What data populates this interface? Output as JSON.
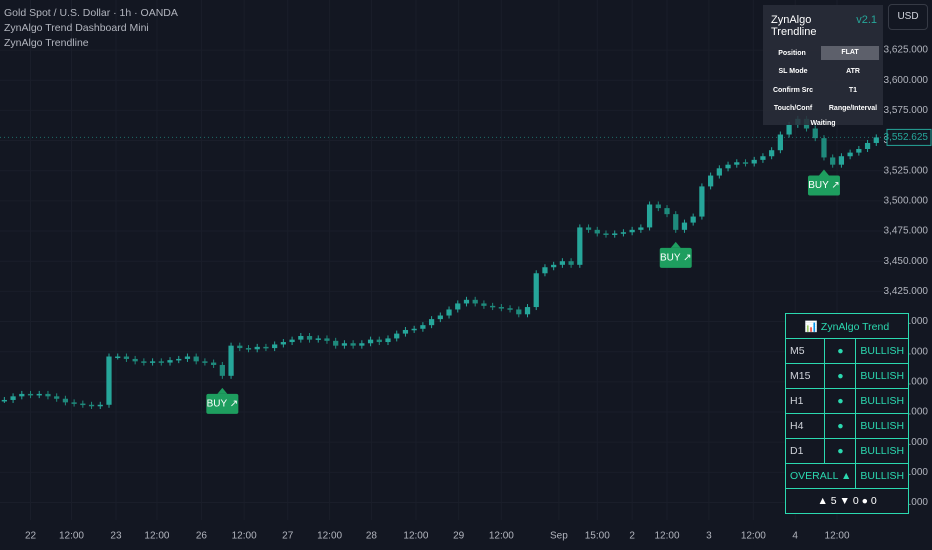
{
  "chart_data": {
    "type": "candlestick",
    "title": "Gold Spot / U.S. Dollar · 1h · OANDA",
    "indicators": [
      "ZynAlgo Trend Dashboard Mini",
      "ZynAlgo Trendline"
    ],
    "currency": "USD",
    "series": [
      {
        "name": "XAUUSD",
        "color": "#26a69a",
        "down_color": "#1f8a7c",
        "values": [
          3335,
          3338,
          3340,
          3339,
          3340,
          3338,
          3336,
          3333,
          3332,
          3331,
          3330,
          3331,
          3371,
          3371,
          3369,
          3367,
          3366,
          3367,
          3366,
          3368,
          3369,
          3371,
          3367,
          3366,
          3364,
          3355,
          3380,
          3378,
          3377,
          3379,
          3378,
          3381,
          3383,
          3385,
          3388,
          3385,
          3386,
          3384,
          3380,
          3382,
          3380,
          3382,
          3385,
          3383,
          3386,
          3390,
          3393,
          3394,
          3397,
          3402,
          3405,
          3410,
          3415,
          3418,
          3415,
          3413,
          3412,
          3411,
          3410,
          3406,
          3412,
          3440,
          3445,
          3447,
          3450,
          3447,
          3478,
          3476,
          3473,
          3472,
          3473,
          3474,
          3476,
          3478,
          3497,
          3494,
          3489,
          3476,
          3482,
          3487,
          3512,
          3521,
          3527,
          3530,
          3532,
          3531,
          3534,
          3537,
          3542,
          3555,
          3563,
          3568,
          3560,
          3552,
          3536,
          3530,
          3537,
          3540,
          3543,
          3548,
          3552.625
        ]
      }
    ],
    "last_price_label": "3,552.625",
    "signals": [
      {
        "label": "BUY ↗",
        "at": 25
      },
      {
        "label": "BUY ↗",
        "at": 77
      },
      {
        "label": "BUY ↗",
        "at": 94
      }
    ],
    "xlim": [
      -0.5,
      101
    ],
    "xticks": [
      {
        "value": 3,
        "label": "22"
      },
      {
        "value": 7.7,
        "label": "12:00"
      },
      {
        "value": 12.8,
        "label": "23"
      },
      {
        "value": 17.5,
        "label": "12:00"
      },
      {
        "value": 22.6,
        "label": "26"
      },
      {
        "value": 27.5,
        "label": "12:00"
      },
      {
        "value": 32.5,
        "label": "27"
      },
      {
        "value": 37.3,
        "label": "12:00"
      },
      {
        "value": 42.1,
        "label": "28"
      },
      {
        "value": 47.2,
        "label": "12:00"
      },
      {
        "value": 52.1,
        "label": "29"
      },
      {
        "value": 57,
        "label": "12:00"
      },
      {
        "value": 63.6,
        "label": "Sep"
      },
      {
        "value": 68,
        "label": "15:00"
      },
      {
        "value": 72,
        "label": "2"
      },
      {
        "value": 76,
        "label": "12:00"
      },
      {
        "value": 80.8,
        "label": "3"
      },
      {
        "value": 85.9,
        "label": "12:00"
      },
      {
        "value": 90.7,
        "label": "4"
      },
      {
        "value": 95.5,
        "label": "12:00"
      }
    ],
    "ylim": [
      3235.5,
      3666.5
    ],
    "yticks": [
      {
        "value": 3250,
        "label": "3,250.000"
      },
      {
        "value": 3275,
        "label": "3,275.000"
      },
      {
        "value": 3300,
        "label": "3,300.000"
      },
      {
        "value": 3325,
        "label": "3,325.000"
      },
      {
        "value": 3350,
        "label": "3,350.000"
      },
      {
        "value": 3375,
        "label": "3,375.000"
      },
      {
        "value": 3400,
        "label": "3,400.000"
      },
      {
        "value": 3425,
        "label": "3,425.000"
      },
      {
        "value": 3450,
        "label": "3,450.000"
      },
      {
        "value": 3475,
        "label": "3,475.000"
      },
      {
        "value": 3500,
        "label": "3,500.000"
      },
      {
        "value": 3525,
        "label": "3,525.000"
      },
      {
        "value": 3550,
        "label": "3,550.000"
      },
      {
        "value": 3575,
        "label": "3,575.000"
      },
      {
        "value": 3600,
        "label": "3,600.000"
      },
      {
        "value": 3625,
        "label": "3,625.000"
      }
    ],
    "grid": true
  },
  "dashboard": {
    "title": "ZynAlgo Trendline",
    "version": "v2.1",
    "rows": [
      [
        "Position",
        "FLAT"
      ],
      [
        "SL Mode",
        "ATR"
      ],
      [
        "Confirm Src",
        "T1"
      ],
      [
        "Touch/Conf",
        "Range/Interval"
      ]
    ],
    "footer": "Waiting"
  },
  "trend_table": {
    "title": "📊 ZynAlgo Trend",
    "rows": [
      [
        "M5",
        "●",
        "BULLISH"
      ],
      [
        "M15",
        "●",
        "BULLISH"
      ],
      [
        "H1",
        "●",
        "BULLISH"
      ],
      [
        "H4",
        "●",
        "BULLISH"
      ],
      [
        "D1",
        "●",
        "BULLISH"
      ]
    ],
    "overall": [
      "OVERALL ▲",
      "BULLISH"
    ],
    "summary": "▲ 5 ▼ 0 ● 0"
  }
}
